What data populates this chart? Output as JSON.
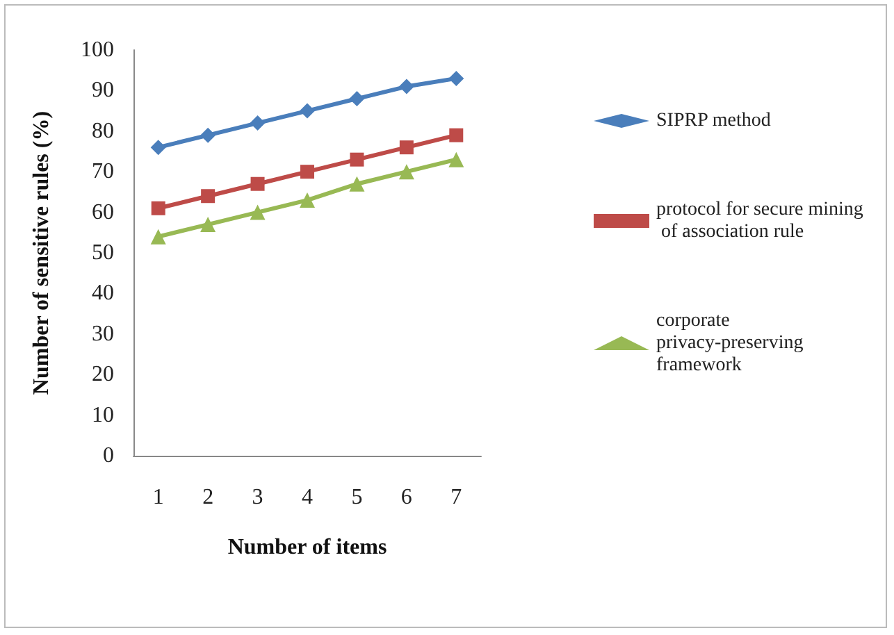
{
  "chart_data": {
    "type": "line",
    "xlabel": "Number of items",
    "ylabel": "Number of sensitive rules (%)",
    "categories": [
      "1",
      "2",
      "3",
      "4",
      "5",
      "6",
      "7"
    ],
    "series": [
      {
        "name": "SIPRP method",
        "color": "#4a7ebb",
        "marker": "diamond",
        "values": [
          76,
          79,
          82,
          85,
          88,
          91,
          93
        ]
      },
      {
        "name": "protocol for secure mining of association rule",
        "color": "#be4b48",
        "marker": "square",
        "values": [
          61,
          64,
          67,
          70,
          73,
          76,
          79
        ]
      },
      {
        "name": "corporate privacy-preserving framework",
        "color": "#98b954",
        "marker": "triangle",
        "values": [
          54,
          57,
          60,
          63,
          67,
          70,
          73
        ]
      }
    ],
    "ylim": [
      0,
      100
    ],
    "yticks": [
      0,
      10,
      20,
      30,
      40,
      50,
      60,
      70,
      80,
      90,
      100
    ],
    "grid": false,
    "legend": "right",
    "line_style": "solid"
  }
}
